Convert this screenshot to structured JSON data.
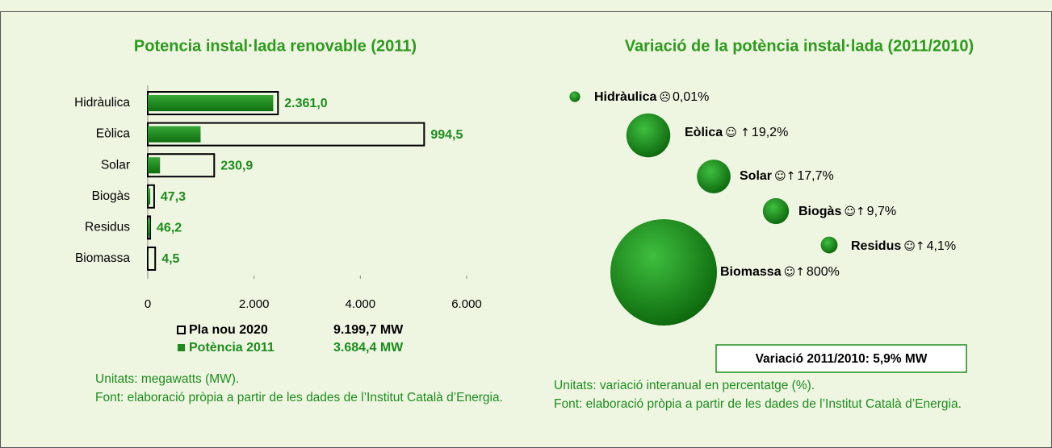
{
  "chart_data": [
    {
      "type": "hbar-overlap",
      "title": "Potencia instal·lada renovable (2011)",
      "categories": [
        "Hidràulica",
        "Eòlica",
        "Solar",
        "Biogàs",
        "Residus",
        "Biomassa"
      ],
      "series": [
        {
          "name": "Pla nou 2020",
          "color": "#000000",
          "total": "9.199,7 MW",
          "values": [
            2450,
            5200,
            1250,
            120,
            46,
            140
          ]
        },
        {
          "name": "Potència 2011",
          "color": "#1e8c1e",
          "total": "3.684,4 MW",
          "values": [
            2361.0,
            994.5,
            230.9,
            47.3,
            46.2,
            4.5
          ],
          "value_labels": [
            "2.361,0",
            "994,5",
            "230,9",
            "47,3",
            "46,2",
            "4,5"
          ]
        }
      ],
      "xlim": [
        0,
        6000
      ],
      "xticks": [
        0,
        {
          "value": 2000,
          "label": "2.000"
        },
        {
          "value": 4000,
          "label": "4.000"
        },
        {
          "value": 6000,
          "label": "6.000"
        }
      ],
      "notes": [
        "Unitats: megawatts (MW).",
        "Font: elaboració pròpia a partir de les dades de l’Institut Català d’Energia."
      ]
    },
    {
      "type": "bubble",
      "title": "Variació de la potència instal·lada (2011/2010)",
      "categories": [
        "Hidràulica",
        "Eòlica",
        "Solar",
        "Biogàs",
        "Residus",
        "Biomassa"
      ],
      "values": [
        0.01,
        19.2,
        17.7,
        9.7,
        4.1,
        800
      ],
      "value_labels": [
        "0,01%",
        "19,2%",
        "17,7%",
        "9,7%",
        "4,1%",
        "800%"
      ],
      "symbols": [
        "☹",
        "☺ ↑",
        "☺↑",
        "☺↑",
        "☺↑",
        "☺↑"
      ],
      "sizes": [
        1,
        17,
        10,
        6,
        2.5,
        100
      ],
      "color": "#1e8c1e",
      "annotation": "Variació 2011/2010: 5,9% MW",
      "notes": [
        "Unitats: variació interanual en percentatge (%).",
        "Font: elaboració pròpia a partir de les dades de l’Institut Català d’Energia."
      ]
    }
  ]
}
